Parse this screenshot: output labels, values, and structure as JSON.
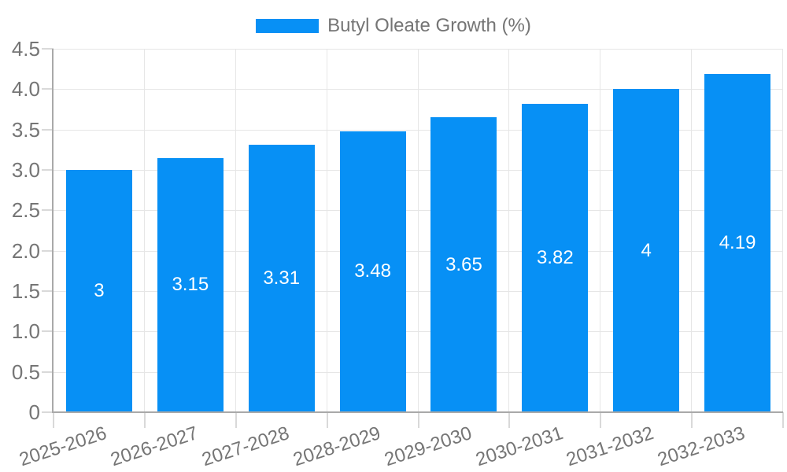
{
  "chart_data": {
    "type": "bar",
    "title": "",
    "series_name": "Butyl Oleate Growth (%)",
    "categories": [
      "2025-2026",
      "2026-2027",
      "2027-2028",
      "2028-2029",
      "2029-2030",
      "2030-2031",
      "2031-2032",
      "2032-2033"
    ],
    "values": [
      3,
      3.15,
      3.31,
      3.48,
      3.65,
      3.82,
      4,
      4.19
    ],
    "value_labels": [
      "3",
      "3.15",
      "3.31",
      "3.48",
      "3.65",
      "3.82",
      "4",
      "4.19"
    ],
    "xlabel": "",
    "ylabel": "",
    "ylim": [
      0,
      4.5
    ],
    "ytick_values": [
      0,
      0.5,
      1,
      1.5,
      2,
      2.5,
      3,
      3.5,
      4,
      4.5
    ],
    "ytick_labels": [
      "0",
      "0.5",
      "1.0",
      "1.5",
      "2.0",
      "2.5",
      "3.0",
      "3.5",
      "4.0",
      "4.5"
    ],
    "grid": true,
    "legend_position": "top-center",
    "x_label_rotation_deg": -18,
    "colors": {
      "bar": "#0790f5",
      "bar_label": "#ffffff",
      "axis_text": "#757575",
      "gridline": "#e6e6e6",
      "axis_line": "#a9a9a9",
      "tick": "#d9d9d9",
      "background": "#ffffff"
    }
  }
}
